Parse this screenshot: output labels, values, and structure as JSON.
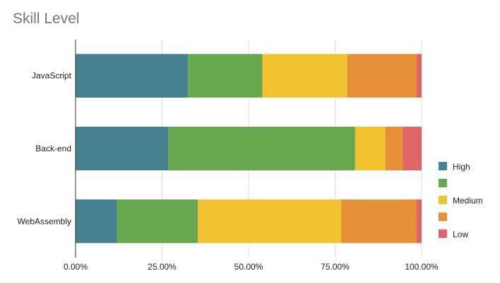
{
  "chart_data": {
    "type": "bar",
    "orientation": "horizontal",
    "stacked": "percent",
    "title": "Skill Level",
    "categories": [
      "JavaScript",
      "Back-end",
      "WebAssembly"
    ],
    "series": [
      {
        "name": "High",
        "color": "#45818e",
        "values": [
          32.5,
          26.8,
          12.0
        ]
      },
      {
        "name": "",
        "color": "#6aa84f",
        "values": [
          21.5,
          54.0,
          23.3
        ]
      },
      {
        "name": "Medium",
        "color": "#f1c232",
        "values": [
          24.5,
          8.7,
          41.4
        ]
      },
      {
        "name": "",
        "color": "#e69138",
        "values": [
          20.0,
          5.0,
          21.7
        ]
      },
      {
        "name": "Low",
        "color": "#e06666",
        "values": [
          1.5,
          5.5,
          1.6
        ]
      }
    ],
    "x_ticks": [
      "0.00%",
      "25.00%",
      "50.00%",
      "75.00%",
      "100.00%"
    ],
    "xlim": [
      0,
      100
    ],
    "grid": true,
    "legend_position": "right"
  }
}
